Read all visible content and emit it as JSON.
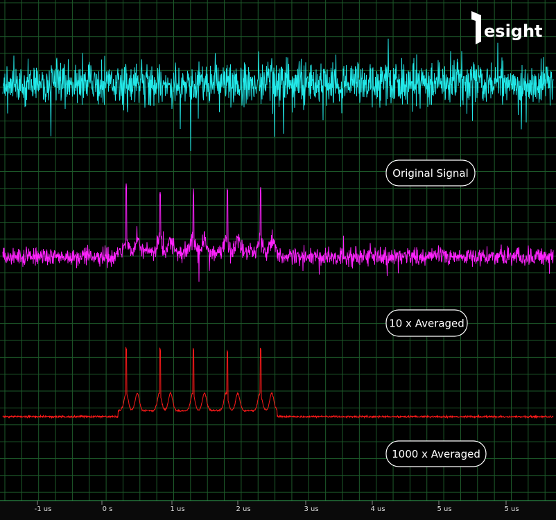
{
  "logo": "esight",
  "x_axis_labels": [
    "-1 us",
    "0 s",
    "1 us",
    "2 us",
    "3 us",
    "4 us",
    "5 us",
    "5 us"
  ],
  "traces": [
    {
      "label": "Original Signal"
    },
    {
      "label": "10 x Averaged"
    },
    {
      "label": "1000 x Averaged"
    }
  ]
}
